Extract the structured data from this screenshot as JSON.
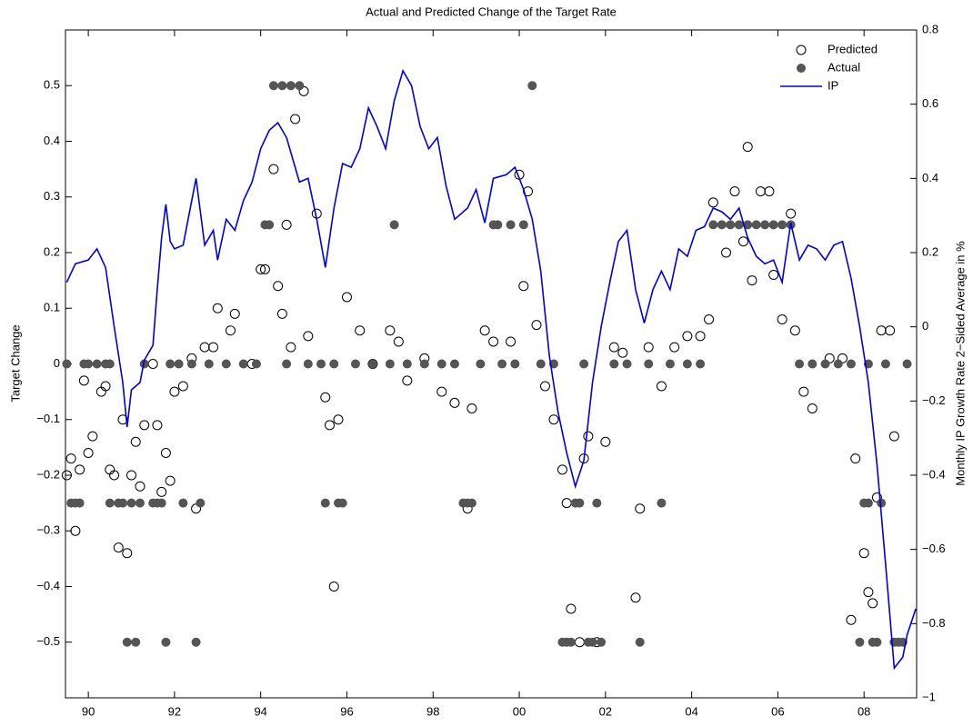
{
  "chart_data": {
    "type": "scatter",
    "title": "Actual and Predicted Change of the Target Rate",
    "y_label": "Target Change",
    "y2_label": "Monthly IP Growth Rate 2−Sided Average in %",
    "xlim": [
      1989.47,
      2009.22
    ],
    "xticks": [
      {
        "value": 1990,
        "label": "90"
      },
      {
        "value": 1992,
        "label": "92"
      },
      {
        "value": 1994,
        "label": "94"
      },
      {
        "value": 1996,
        "label": "96"
      },
      {
        "value": 1998,
        "label": "98"
      },
      {
        "value": 2000,
        "label": "00"
      },
      {
        "value": 2002,
        "label": "02"
      },
      {
        "value": 2004,
        "label": "04"
      },
      {
        "value": 2006,
        "label": "06"
      },
      {
        "value": 2008,
        "label": "08"
      }
    ],
    "ylim": [
      -0.6,
      0.6
    ],
    "yticks": [
      {
        "value": -0.5,
        "label": "−0.5"
      },
      {
        "value": -0.4,
        "label": "−0.4"
      },
      {
        "value": -0.3,
        "label": "−0.3"
      },
      {
        "value": -0.2,
        "label": "−0.2"
      },
      {
        "value": -0.1,
        "label": "−0.1"
      },
      0,
      0.1,
      0.2,
      0.3,
      0.4,
      0.5
    ],
    "y2lim": [
      -1,
      0.8
    ],
    "y2ticks": [
      {
        "value": -1,
        "label": "−1"
      },
      {
        "value": -0.8,
        "label": "−0.8"
      },
      {
        "value": -0.6,
        "label": "−0.6"
      },
      {
        "value": -0.4,
        "label": "−0.4"
      },
      {
        "value": -0.2,
        "label": "−0.2"
      },
      0,
      0.2,
      0.4,
      0.6,
      0.8
    ],
    "legend": "upper right",
    "series": [
      {
        "name": "Predicted",
        "mark": "open-circle",
        "color": "#000000",
        "x": [
          1989.5,
          1989.6,
          1989.7,
          1989.8,
          1989.9,
          1990.0,
          1990.1,
          1990.3,
          1990.4,
          1990.5,
          1990.6,
          1990.7,
          1990.8,
          1990.9,
          1991.0,
          1991.1,
          1991.2,
          1991.3,
          1991.5,
          1991.6,
          1991.7,
          1991.8,
          1991.9,
          1992.0,
          1992.2,
          1992.4,
          1992.5,
          1992.7,
          1992.9,
          1993.0,
          1993.3,
          1993.4,
          1993.8,
          1994.0,
          1994.1,
          1994.3,
          1994.4,
          1994.5,
          1994.6,
          1994.7,
          1994.8,
          1995.0,
          1995.1,
          1995.3,
          1995.5,
          1995.6,
          1995.7,
          1995.8,
          1996.0,
          1996.3,
          1996.6,
          1997.0,
          1997.2,
          1997.4,
          1997.8,
          1998.2,
          1998.5,
          1998.8,
          1998.9,
          1999.2,
          1999.4,
          1999.8,
          2000.0,
          2000.1,
          2000.2,
          2000.4,
          2000.6,
          2000.8,
          2001.0,
          2001.1,
          2001.2,
          2001.4,
          2001.5,
          2001.6,
          2001.8,
          2002.0,
          2002.2,
          2002.4,
          2002.7,
          2002.8,
          2003.0,
          2003.3,
          2003.6,
          2003.9,
          2004.2,
          2004.4,
          2004.5,
          2004.8,
          2005.0,
          2005.2,
          2005.3,
          2005.4,
          2005.6,
          2005.8,
          2005.9,
          2006.1,
          2006.3,
          2006.4,
          2006.6,
          2006.8,
          2007.2,
          2007.5,
          2007.7,
          2007.8,
          2008.0,
          2008.1,
          2008.2,
          2008.3,
          2008.4,
          2008.6,
          2008.7
        ],
        "values": [
          -0.2,
          -0.17,
          -0.3,
          -0.19,
          -0.03,
          -0.16,
          -0.13,
          -0.05,
          -0.04,
          -0.19,
          -0.2,
          -0.33,
          -0.1,
          -0.34,
          -0.2,
          -0.14,
          -0.22,
          -0.11,
          0.0,
          -0.11,
          -0.23,
          -0.16,
          -0.21,
          -0.05,
          -0.04,
          0.01,
          -0.26,
          0.03,
          0.03,
          0.1,
          0.06,
          0.09,
          0.0,
          0.17,
          0.17,
          0.35,
          0.14,
          0.09,
          0.25,
          0.03,
          0.44,
          0.49,
          0.05,
          0.27,
          -0.06,
          -0.11,
          -0.4,
          -0.1,
          0.12,
          0.06,
          0.0,
          0.06,
          0.04,
          -0.03,
          0.01,
          -0.05,
          -0.07,
          -0.26,
          -0.08,
          0.06,
          0.04,
          0.04,
          0.34,
          0.14,
          0.31,
          0.07,
          -0.04,
          -0.1,
          -0.19,
          -0.25,
          -0.44,
          -0.5,
          -0.17,
          -0.13,
          -0.5,
          -0.14,
          0.03,
          0.02,
          -0.42,
          -0.26,
          0.03,
          -0.04,
          0.03,
          0.05,
          0.05,
          0.08,
          0.29,
          0.2,
          0.31,
          0.22,
          0.39,
          0.15,
          0.31,
          0.31,
          0.16,
          0.08,
          0.27,
          0.06,
          -0.05,
          -0.08,
          0.01,
          0.01,
          -0.46,
          -0.17,
          -0.34,
          -0.41,
          -0.43,
          -0.24,
          0.06,
          0.06,
          -0.13
        ]
      },
      {
        "name": "Actual",
        "mark": "filled-circle",
        "color": "#555555",
        "x": [
          1989.5,
          1989.6,
          1989.7,
          1989.8,
          1989.9,
          1990.0,
          1990.2,
          1990.4,
          1990.5,
          1990.5,
          1990.7,
          1990.8,
          1990.9,
          1991.0,
          1991.1,
          1991.2,
          1991.3,
          1991.5,
          1991.6,
          1991.7,
          1991.8,
          1991.9,
          1992.1,
          1992.2,
          1992.4,
          1992.5,
          1992.6,
          1992.8,
          1993.2,
          1993.6,
          1993.9,
          1994.1,
          1994.2,
          1994.3,
          1994.5,
          1994.6,
          1994.7,
          1994.9,
          1995.1,
          1995.4,
          1995.5,
          1995.7,
          1995.8,
          1995.9,
          1996.2,
          1996.6,
          1997.0,
          1997.1,
          1997.4,
          1997.8,
          1998.2,
          1998.5,
          1998.7,
          1998.8,
          1998.9,
          1999.1,
          1999.4,
          1999.5,
          1999.6,
          1999.8,
          1999.9,
          2000.1,
          2000.3,
          2000.5,
          2000.8,
          2001.0,
          2001.1,
          2001.2,
          2001.3,
          2001.4,
          2001.5,
          2001.6,
          2001.7,
          2001.8,
          2001.9,
          2002.2,
          2002.5,
          2002.8,
          2003.0,
          2003.3,
          2003.5,
          2003.9,
          2004.2,
          2004.5,
          2004.7,
          2004.9,
          2005.1,
          2005.3,
          2005.5,
          2005.7,
          2005.9,
          2006.1,
          2006.3,
          2006.5,
          2006.8,
          2007.1,
          2007.4,
          2007.7,
          2007.9,
          2008.0,
          2008.1,
          2008.1,
          2008.2,
          2008.3,
          2008.4,
          2008.5,
          2008.7,
          2008.8,
          2008.9,
          2009.0
        ],
        "values": [
          0,
          -0.25,
          -0.25,
          -0.25,
          0,
          0,
          0,
          0,
          0,
          -0.25,
          -0.25,
          -0.25,
          -0.5,
          -0.25,
          -0.5,
          -0.25,
          0,
          -0.25,
          -0.25,
          -0.25,
          -0.5,
          0,
          0,
          -0.25,
          0,
          -0.5,
          -0.25,
          0,
          0,
          0,
          0,
          0.25,
          0.25,
          0.5,
          0.5,
          0,
          0.5,
          0.5,
          0,
          0,
          -0.25,
          0,
          -0.25,
          -0.25,
          0,
          0,
          0,
          0.25,
          0,
          0,
          0,
          0,
          -0.25,
          -0.25,
          -0.25,
          0,
          0.25,
          0.25,
          0,
          0.25,
          0,
          0.25,
          0.5,
          0,
          0,
          -0.5,
          -0.5,
          -0.5,
          -0.25,
          -0.25,
          0,
          -0.5,
          -0.5,
          -0.25,
          -0.5,
          0,
          0,
          -0.5,
          0,
          -0.25,
          0,
          0,
          0,
          0.25,
          0.25,
          0.25,
          0.25,
          0.25,
          0.25,
          0.25,
          0.25,
          0.25,
          0.25,
          0,
          0,
          0,
          0,
          0,
          -0.5,
          -0.25,
          -0.25,
          0,
          -0.5,
          -0.5,
          -0.25,
          0,
          -0.5,
          -0.5,
          -0.5,
          0
        ]
      },
      {
        "name": "IP",
        "mark": "line",
        "color": "#0000dd",
        "axis": "y2",
        "x": [
          1989.5,
          1989.7,
          1990.0,
          1990.2,
          1990.4,
          1990.6,
          1990.8,
          1990.9,
          1991.0,
          1991.2,
          1991.3,
          1991.5,
          1991.6,
          1991.7,
          1991.8,
          1991.9,
          1992.0,
          1992.2,
          1992.3,
          1992.5,
          1992.7,
          1992.9,
          1993.0,
          1993.2,
          1993.4,
          1993.6,
          1993.8,
          1994.0,
          1994.2,
          1994.4,
          1994.6,
          1994.9,
          1995.1,
          1995.3,
          1995.5,
          1995.7,
          1995.9,
          1996.1,
          1996.3,
          1996.5,
          1996.7,
          1996.9,
          1997.1,
          1997.3,
          1997.5,
          1997.7,
          1997.9,
          1998.1,
          1998.3,
          1998.5,
          1998.8,
          1999.0,
          1999.2,
          1999.4,
          1999.7,
          1999.9,
          2000.1,
          2000.3,
          2000.5,
          2000.7,
          2000.9,
          2001.1,
          2001.3,
          2001.5,
          2001.7,
          2001.9,
          2002.1,
          2002.3,
          2002.5,
          2002.7,
          2002.9,
          2003.1,
          2003.3,
          2003.5,
          2003.7,
          2003.9,
          2004.1,
          2004.3,
          2004.5,
          2004.7,
          2004.9,
          2005.1,
          2005.3,
          2005.5,
          2005.7,
          2005.9,
          2006.1,
          2006.3,
          2006.5,
          2006.7,
          2006.9,
          2007.1,
          2007.3,
          2007.5,
          2007.7,
          2007.9,
          2008.1,
          2008.3,
          2008.5,
          2008.7,
          2008.9,
          2009.0,
          2009.2
        ],
        "values": [
          0.12,
          0.17,
          0.18,
          0.21,
          0.16,
          0.0,
          -0.15,
          -0.27,
          -0.17,
          -0.15,
          -0.09,
          -0.05,
          0.1,
          0.24,
          0.33,
          0.23,
          0.21,
          0.22,
          0.28,
          0.4,
          0.22,
          0.26,
          0.18,
          0.29,
          0.26,
          0.34,
          0.39,
          0.48,
          0.53,
          0.55,
          0.51,
          0.39,
          0.4,
          0.29,
          0.16,
          0.32,
          0.44,
          0.43,
          0.48,
          0.59,
          0.54,
          0.48,
          0.61,
          0.69,
          0.65,
          0.54,
          0.48,
          0.51,
          0.38,
          0.29,
          0.32,
          0.37,
          0.28,
          0.4,
          0.41,
          0.43,
          0.37,
          0.29,
          0.15,
          -0.08,
          -0.23,
          -0.34,
          -0.43,
          -0.36,
          -0.15,
          0.0,
          0.12,
          0.23,
          0.26,
          0.1,
          0.01,
          0.1,
          0.15,
          0.1,
          0.21,
          0.19,
          0.26,
          0.27,
          0.32,
          0.31,
          0.29,
          0.32,
          0.24,
          0.19,
          0.17,
          0.18,
          0.12,
          0.28,
          0.18,
          0.22,
          0.21,
          0.18,
          0.22,
          0.23,
          0.13,
          0.0,
          -0.15,
          -0.37,
          -0.64,
          -0.92,
          -0.89,
          -0.83,
          -0.76
        ]
      }
    ]
  }
}
